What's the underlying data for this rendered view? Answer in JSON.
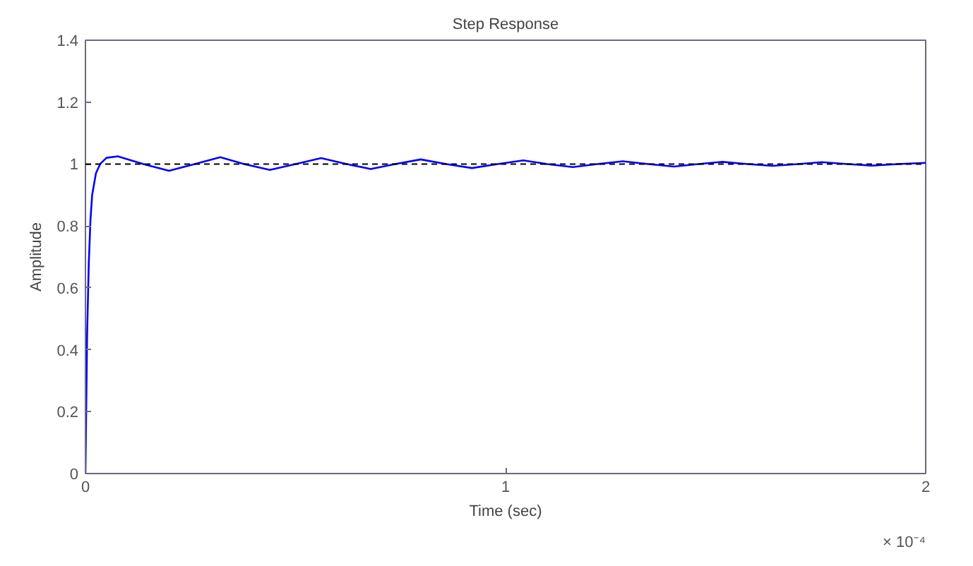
{
  "chart_data": {
    "type": "line",
    "title": "Step Response",
    "xlabel": "Time (sec)",
    "ylabel": "Amplitude",
    "annotations": [
      "× 10⁻⁴"
    ],
    "xlim": [
      0,
      2
    ],
    "xticks": [
      0,
      1,
      2
    ],
    "ylim": [
      0,
      1.4
    ],
    "yticks": [
      0,
      0.2,
      0.4,
      0.6,
      0.8,
      1,
      1.2,
      1.4
    ],
    "grid": false,
    "ref_lines": [
      {
        "axis": "y",
        "value": 1,
        "color": "#000000",
        "line_style": "dashed"
      }
    ],
    "series": [
      {
        "color": "#0000ff",
        "line_style": "solid",
        "x": [
          0,
          0.004,
          0.008,
          0.012,
          0.016,
          0.025,
          0.035,
          0.05,
          0.077,
          0.138,
          0.199,
          0.26,
          0.321,
          0.378,
          0.439,
          0.5,
          0.561,
          0.622,
          0.679,
          0.737,
          0.798,
          0.859,
          0.92,
          0.981,
          1.042,
          1.099,
          1.16,
          1.218,
          1.279,
          1.34,
          1.401,
          1.458,
          1.516,
          1.577,
          1.635,
          1.696,
          1.753,
          1.814,
          1.872,
          1.933,
          2.0
        ],
        "values": [
          0,
          0.45,
          0.68,
          0.82,
          0.9,
          0.97,
          1.0,
          1.02,
          1.025,
          1.0,
          0.978,
          1.0,
          1.022,
          1.0,
          0.981,
          1.0,
          1.019,
          1.0,
          0.984,
          1.0,
          1.015,
          1.0,
          0.987,
          1.0,
          1.012,
          1.0,
          0.99,
          1.0,
          1.009,
          1.0,
          0.992,
          1.0,
          1.007,
          1.0,
          0.994,
          1.0,
          1.006,
          1.0,
          0.995,
          1.0,
          1.004
        ]
      }
    ]
  }
}
